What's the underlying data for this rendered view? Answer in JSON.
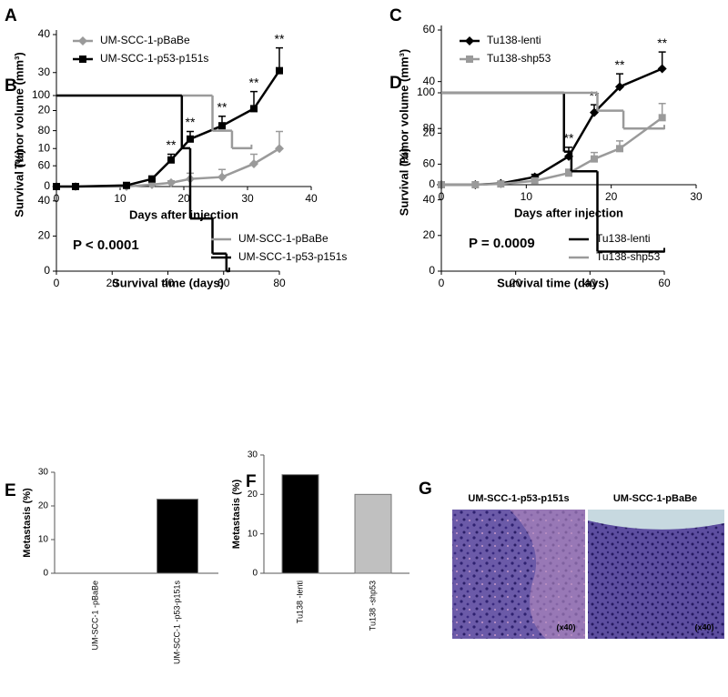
{
  "chart_data": [
    {
      "type": "line",
      "label": "A",
      "x_label": "Days after injection",
      "y_label": "Tumor volume (mm³)",
      "x": [
        0,
        3,
        11,
        15,
        18,
        21,
        26,
        31,
        35
      ],
      "xlim": [
        0,
        40
      ],
      "xticks": [
        0,
        10,
        20,
        30,
        40
      ],
      "ylim": [
        0,
        40
      ],
      "yticks": [
        0,
        10,
        20,
        30,
        40
      ],
      "series": [
        {
          "name": "UM-SCC-1-pBaBe",
          "color": "#9a9a9a",
          "marker": "diamond",
          "values": [
            0,
            0,
            0,
            0.5,
            1,
            2,
            2.5,
            6,
            10
          ],
          "errors": [
            0,
            0,
            0,
            0.5,
            0.5,
            1.5,
            2,
            2.5,
            4.5
          ]
        },
        {
          "name": "UM-SCC-1-p53-p151s",
          "color": "#000000",
          "marker": "square",
          "values": [
            0,
            0,
            0.3,
            2,
            7,
            12.5,
            16,
            20.5,
            30.5
          ],
          "errors": [
            0,
            0,
            0.3,
            0.5,
            1.5,
            2,
            2.5,
            4.5,
            6
          ]
        }
      ],
      "annotations": [
        {
          "text": "**",
          "x": 18
        },
        {
          "text": "**",
          "x": 21
        },
        {
          "text": "**",
          "x": 26
        },
        {
          "text": "**",
          "x": 31
        },
        {
          "text": "**",
          "x": 35
        }
      ]
    },
    {
      "type": "line",
      "label": "C",
      "x_label": "Days after injection",
      "y_label": "Tumor volume (mm³)",
      "x": [
        0,
        4,
        7,
        11,
        15,
        18,
        21,
        26
      ],
      "xlim": [
        0,
        30
      ],
      "xticks": [
        0,
        10,
        20,
        30
      ],
      "ylim": [
        0,
        60
      ],
      "yticks": [
        0,
        20,
        40,
        60
      ],
      "series": [
        {
          "name": "Tu138-lenti",
          "color": "#000000",
          "marker": "diamond",
          "values": [
            0,
            0,
            0.5,
            3,
            11,
            28,
            38,
            45
          ],
          "errors": [
            0,
            0,
            0.5,
            1,
            3.5,
            3,
            5,
            6.5
          ]
        },
        {
          "name": "Tu138-shp53",
          "color": "#9a9a9a",
          "marker": "square",
          "values": [
            0,
            0,
            0.3,
            1.5,
            4.5,
            10,
            14,
            26
          ],
          "errors": [
            0,
            0,
            0.3,
            0.5,
            1.5,
            2.5,
            3,
            5.5
          ]
        }
      ],
      "annotations": [
        {
          "text": "**",
          "x": 15
        },
        {
          "text": "**",
          "x": 18
        },
        {
          "text": "**",
          "x": 21
        },
        {
          "text": "**",
          "x": 26
        }
      ]
    },
    {
      "type": "step",
      "label": "B",
      "x_label": "Survival time (days)",
      "y_label": "Survival (%)",
      "xlim": [
        0,
        80
      ],
      "xticks": [
        0,
        20,
        40,
        60,
        80
      ],
      "ylim": [
        0,
        100
      ],
      "yticks": [
        0,
        20,
        40,
        60,
        80,
        100
      ],
      "series": [
        {
          "name": "UM-SCC-1-pBaBe",
          "color": "#9a9a9a",
          "x": [
            0,
            56,
            63,
            70
          ],
          "values": [
            100,
            80,
            70,
            70
          ]
        },
        {
          "name": "UM-SCC-1-p53-p151s",
          "color": "#000000",
          "x": [
            0,
            45,
            48,
            56,
            61,
            62
          ],
          "values": [
            100,
            70,
            30,
            10,
            0,
            0
          ]
        }
      ],
      "annotations": [
        {
          "text": "P < 0.0001"
        }
      ]
    },
    {
      "type": "step",
      "label": "D",
      "x_label": "Survival time (days)",
      "y_label": "Survival (%)",
      "xlim": [
        0,
        60
      ],
      "xticks": [
        0,
        20,
        40,
        60
      ],
      "ylim": [
        0,
        100
      ],
      "yticks": [
        0,
        20,
        40,
        60,
        80,
        100
      ],
      "series": [
        {
          "name": "Tu138-lenti",
          "color": "#000000",
          "x": [
            0,
            33,
            35,
            42,
            60
          ],
          "values": [
            100,
            67,
            56,
            11,
            11
          ]
        },
        {
          "name": "Tu138-shp53",
          "color": "#9a9a9a",
          "x": [
            0,
            42,
            49,
            60
          ],
          "values": [
            100,
            90,
            80,
            80
          ]
        }
      ],
      "annotations": [
        {
          "text": "P = 0.0009"
        }
      ]
    },
    {
      "type": "bar",
      "label": "E",
      "y_label": "Metastasis (%)",
      "categories": [
        "UM-SCC-1 -pBaBe",
        "UM-SCC-1 -p53-p151s"
      ],
      "values": [
        0,
        22
      ],
      "colors": [
        "#000000",
        "#000000"
      ],
      "ylim": [
        0,
        30
      ],
      "yticks": [
        0,
        10,
        20,
        30
      ]
    },
    {
      "type": "bar",
      "label": "F",
      "y_label": "Metastasis (%)",
      "categories": [
        "Tu138 -lenti",
        "Tu138 -shp53"
      ],
      "values": [
        25,
        20
      ],
      "colors": [
        "#000000",
        "#c0c0c0"
      ],
      "ylim": [
        0,
        30
      ],
      "yticks": [
        0,
        10,
        20,
        30
      ]
    }
  ],
  "panel_g": {
    "label": "G",
    "images": [
      {
        "title": "UM-SCC-1-p53-p151s",
        "magnification": "(x40)"
      },
      {
        "title": "UM-SCC-1-pBaBe",
        "magnification": "(x40)"
      }
    ]
  }
}
